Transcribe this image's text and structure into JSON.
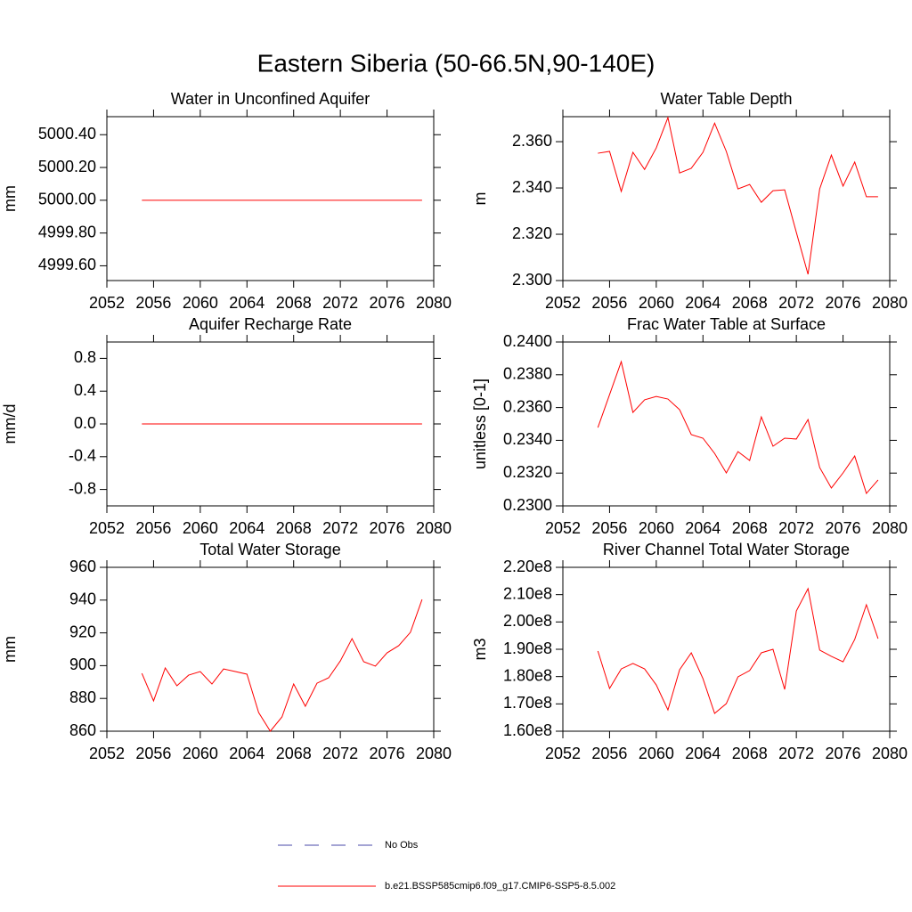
{
  "title": "Eastern Siberia (50-66.5N,90-140E)",
  "legend": [
    {
      "name": "No Obs",
      "color": "#4a4aa8",
      "dash": true
    },
    {
      "name": "b.e21.BSSP585cmip6.f09_g17.CMIP6-SSP5-8.5.002",
      "color": "#ff0000",
      "dash": false
    }
  ],
  "chart_data": [
    {
      "type": "line",
      "title": "Water in Unconfined Aquifer",
      "y_label": "mm",
      "x": [
        2055,
        2056,
        2057,
        2058,
        2059,
        2060,
        2061,
        2062,
        2063,
        2064,
        2065,
        2066,
        2067,
        2068,
        2069,
        2070,
        2071,
        2072,
        2073,
        2074,
        2075,
        2076,
        2077,
        2078,
        2079
      ],
      "xlim": [
        2052,
        2080
      ],
      "xticks": [
        2052,
        2056,
        2060,
        2064,
        2068,
        2072,
        2076,
        2080
      ],
      "ylim": [
        4999.51,
        5000.51
      ],
      "yticks": [
        {
          "value": 4999.6,
          "label": "4999.60"
        },
        {
          "value": 4999.8,
          "label": "4999.80"
        },
        {
          "value": 5000.0,
          "label": "5000.00"
        },
        {
          "value": 5000.2,
          "label": "5000.20"
        },
        {
          "value": 5000.4,
          "label": "5000.40"
        }
      ],
      "series": [
        {
          "color": "#ff0000",
          "values": [
            5000,
            5000,
            5000,
            5000,
            5000,
            5000,
            5000,
            5000,
            5000,
            5000,
            5000,
            5000,
            5000,
            5000,
            5000,
            5000,
            5000,
            5000,
            5000,
            5000,
            5000,
            5000,
            5000,
            5000,
            5000
          ]
        }
      ]
    },
    {
      "type": "line",
      "title": "Water Table Depth",
      "y_label": "m",
      "x": [
        2055,
        2056,
        2057,
        2058,
        2059,
        2060,
        2061,
        2062,
        2063,
        2064,
        2065,
        2066,
        2067,
        2068,
        2069,
        2070,
        2071,
        2072,
        2073,
        2074,
        2075,
        2076,
        2077,
        2078,
        2079
      ],
      "xlim": [
        2052,
        2080
      ],
      "xticks": [
        2052,
        2056,
        2060,
        2064,
        2068,
        2072,
        2076,
        2080
      ],
      "ylim": [
        2.3,
        2.3708
      ],
      "yticks": [
        {
          "value": 2.3,
          "label": "2.300"
        },
        {
          "value": 2.32,
          "label": "2.320"
        },
        {
          "value": 2.34,
          "label": "2.340"
        },
        {
          "value": 2.36,
          "label": "2.360"
        }
      ],
      "series": [
        {
          "color": "#ff0000",
          "values": [
            2.355,
            2.3558,
            2.3385,
            2.3554,
            2.348,
            2.3573,
            2.3704,
            2.3465,
            2.3485,
            2.3554,
            2.368,
            2.3558,
            2.3396,
            2.3415,
            2.3338,
            2.3388,
            2.3392,
            2.3208,
            2.3027,
            2.3396,
            2.3542,
            2.3408,
            2.3512,
            2.3362,
            2.3362
          ]
        }
      ]
    },
    {
      "type": "line",
      "title": "Aquifer Recharge Rate",
      "y_label": "mm/d",
      "x": [
        2055,
        2056,
        2057,
        2058,
        2059,
        2060,
        2061,
        2062,
        2063,
        2064,
        2065,
        2066,
        2067,
        2068,
        2069,
        2070,
        2071,
        2072,
        2073,
        2074,
        2075,
        2076,
        2077,
        2078,
        2079
      ],
      "xlim": [
        2052,
        2080
      ],
      "xticks": [
        2052,
        2056,
        2060,
        2064,
        2068,
        2072,
        2076,
        2080
      ],
      "ylim": [
        -1,
        1
      ],
      "yticks": [
        -0.8,
        -0.4,
        {
          "value": 0,
          "label": "0.0"
        },
        0.4,
        0.8
      ],
      "series": [
        {
          "color": "#ff0000",
          "values": [
            0,
            0,
            0,
            0,
            0,
            0,
            0,
            0,
            0,
            0,
            0,
            0,
            0,
            0,
            0,
            0,
            0,
            0,
            0,
            0,
            0,
            0,
            0,
            0,
            0
          ]
        }
      ]
    },
    {
      "type": "line",
      "title": "Frac Water Table at Surface",
      "y_label": "unitless [0-1]",
      "x": [
        2055,
        2056,
        2057,
        2058,
        2059,
        2060,
        2061,
        2062,
        2063,
        2064,
        2065,
        2066,
        2067,
        2068,
        2069,
        2070,
        2071,
        2072,
        2073,
        2074,
        2075,
        2076,
        2077,
        2078,
        2079
      ],
      "xlim": [
        2052,
        2080
      ],
      "xticks": [
        2052,
        2056,
        2060,
        2064,
        2068,
        2072,
        2076,
        2080
      ],
      "ylim": [
        0.23,
        0.24
      ],
      "yticks": [
        {
          "value": 0.23,
          "label": "0.2300"
        },
        {
          "value": 0.232,
          "label": "0.2320"
        },
        {
          "value": 0.234,
          "label": "0.2340"
        },
        {
          "value": 0.236,
          "label": "0.2360"
        },
        {
          "value": 0.238,
          "label": "0.2380"
        },
        {
          "value": 0.24,
          "label": "0.2400"
        }
      ],
      "series": [
        {
          "color": "#ff0000",
          "values": [
            0.23478,
            0.23679,
            0.2388,
            0.2357,
            0.23647,
            0.23668,
            0.23652,
            0.23587,
            0.23435,
            0.23413,
            0.2332,
            0.23201,
            0.23331,
            0.23277,
            0.23543,
            0.23364,
            0.23413,
            0.23408,
            0.23527,
            0.23234,
            0.23109,
            0.23201,
            0.23304,
            0.23076,
            0.23158
          ]
        }
      ]
    },
    {
      "type": "line",
      "title": "Total Water Storage",
      "y_label": "mm",
      "x": [
        2055,
        2056,
        2057,
        2058,
        2059,
        2060,
        2061,
        2062,
        2063,
        2064,
        2065,
        2066,
        2067,
        2068,
        2069,
        2070,
        2071,
        2072,
        2073,
        2074,
        2075,
        2076,
        2077,
        2078,
        2079
      ],
      "xlim": [
        2052,
        2080
      ],
      "xticks": [
        2052,
        2056,
        2060,
        2064,
        2068,
        2072,
        2076,
        2080
      ],
      "ylim": [
        860,
        960
      ],
      "yticks": [
        860,
        880,
        900,
        920,
        940,
        960
      ],
      "series": [
        {
          "color": "#ff0000",
          "values": [
            895.3,
            878.5,
            898.6,
            887.7,
            894.2,
            896.4,
            888.8,
            898,
            896.4,
            894.8,
            871.4,
            860,
            868.7,
            888.8,
            875.2,
            889.3,
            892.6,
            902.9,
            916.5,
            902.4,
            899.7,
            907.8,
            912.2,
            920.3,
            940.4
          ]
        }
      ]
    },
    {
      "type": "line",
      "title": "River Channel Total Water Storage",
      "y_label": "m3",
      "x": [
        2055,
        2056,
        2057,
        2058,
        2059,
        2060,
        2061,
        2062,
        2063,
        2064,
        2065,
        2066,
        2067,
        2068,
        2069,
        2070,
        2071,
        2072,
        2073,
        2074,
        2075,
        2076,
        2077,
        2078,
        2079
      ],
      "xlim": [
        2052,
        2080
      ],
      "xticks": [
        2052,
        2056,
        2060,
        2064,
        2068,
        2072,
        2076,
        2080
      ],
      "ylim": [
        160000000,
        220000000
      ],
      "yticks": [
        {
          "value": 160000000,
          "label": "1.60e8"
        },
        {
          "value": 170000000,
          "label": "1.70e8"
        },
        {
          "value": 180000000,
          "label": "1.80e8"
        },
        {
          "value": 190000000,
          "label": "1.90e8"
        },
        {
          "value": 200000000,
          "label": "2.00e8"
        },
        {
          "value": 210000000,
          "label": "2.10e8"
        },
        {
          "value": 220000000,
          "label": "2.20e8"
        }
      ],
      "series": [
        {
          "color": "#ff0000",
          "values": [
            189350000,
            175650000,
            182800000,
            184800000,
            182800000,
            176950000,
            167800000,
            182500000,
            188700000,
            179250000,
            166500000,
            170100000,
            179900000,
            182200000,
            188700000,
            190000000,
            175300000,
            204000000,
            212200000,
            189700000,
            187400000,
            185400000,
            193600000,
            206300000,
            193900000
          ]
        }
      ]
    }
  ]
}
